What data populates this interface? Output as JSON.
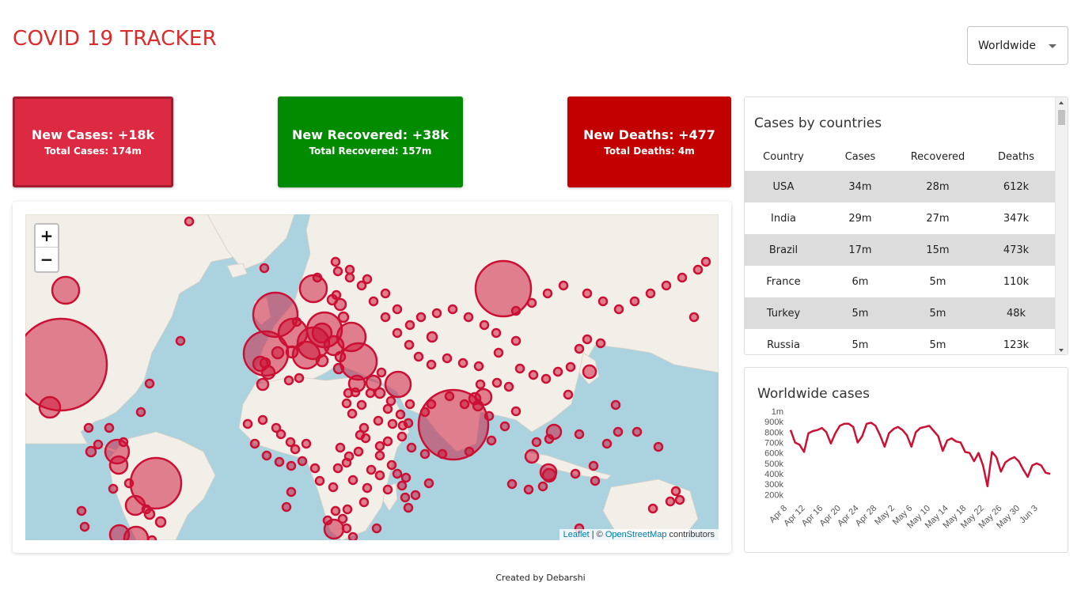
{
  "app": {
    "title": "COVID 19 TRACKER"
  },
  "selector": {
    "value": "Worldwide"
  },
  "cards": {
    "cases": {
      "main": "New Cases: +18k",
      "sub": "Total Cases: 174m",
      "color": "#dc2a43"
    },
    "recovered": {
      "main": "New Recovered: +38k",
      "sub": "Total Recovered: 157m",
      "color": "#008b00"
    },
    "deaths": {
      "main": "New Deaths: +477",
      "sub": "Total Deaths: 4m",
      "color": "#c20000"
    }
  },
  "map": {
    "zoom_in": "+",
    "zoom_out": "−",
    "attribution": {
      "leaflet": "Leaflet",
      "separator": " | © ",
      "osm": "OpenStreetMap",
      "contributors": " contributors"
    }
  },
  "table": {
    "title": "Cases by countries",
    "headers": [
      "Country",
      "Cases",
      "Recovered",
      "Deaths"
    ],
    "rows": [
      [
        "USA",
        "34m",
        "28m",
        "612k"
      ],
      [
        "India",
        "29m",
        "27m",
        "347k"
      ],
      [
        "Brazil",
        "17m",
        "15m",
        "473k"
      ],
      [
        "France",
        "6m",
        "5m",
        "110k"
      ],
      [
        "Turkey",
        "5m",
        "5m",
        "48k"
      ],
      [
        "Russia",
        "5m",
        "5m",
        "123k"
      ]
    ]
  },
  "chart_data": {
    "type": "line",
    "title": "Worldwide cases",
    "y_ticks": [
      "1m",
      "900k",
      "800k",
      "700k",
      "600k",
      "500k",
      "400k",
      "300k",
      "200k"
    ],
    "ylim": [
      150000,
      1000000
    ],
    "x_ticks": [
      "Apr 8",
      "Apr 12",
      "Apr 16",
      "Apr 20",
      "Apr 24",
      "Apr 28",
      "May 2",
      "May 6",
      "May 10",
      "May 14",
      "May 18",
      "May 22",
      "May 26",
      "May 30",
      "Jun 3"
    ],
    "x_start": "Apr 8",
    "x_end": "Jun 5",
    "series": [
      {
        "color": "#cc1034",
        "values": [
          820000,
          700000,
          680000,
          610000,
          790000,
          810000,
          820000,
          840000,
          800000,
          690000,
          790000,
          860000,
          880000,
          880000,
          850000,
          700000,
          760000,
          880000,
          890000,
          860000,
          770000,
          660000,
          790000,
          830000,
          850000,
          820000,
          770000,
          660000,
          800000,
          840000,
          850000,
          860000,
          810000,
          760000,
          620000,
          720000,
          740000,
          710000,
          700000,
          610000,
          600000,
          520000,
          600000,
          480000,
          280000,
          610000,
          560000,
          420000,
          510000,
          540000,
          560000,
          520000,
          440000,
          370000,
          480000,
          500000,
          480000,
          410000,
          400000
        ]
      }
    ]
  }
}
